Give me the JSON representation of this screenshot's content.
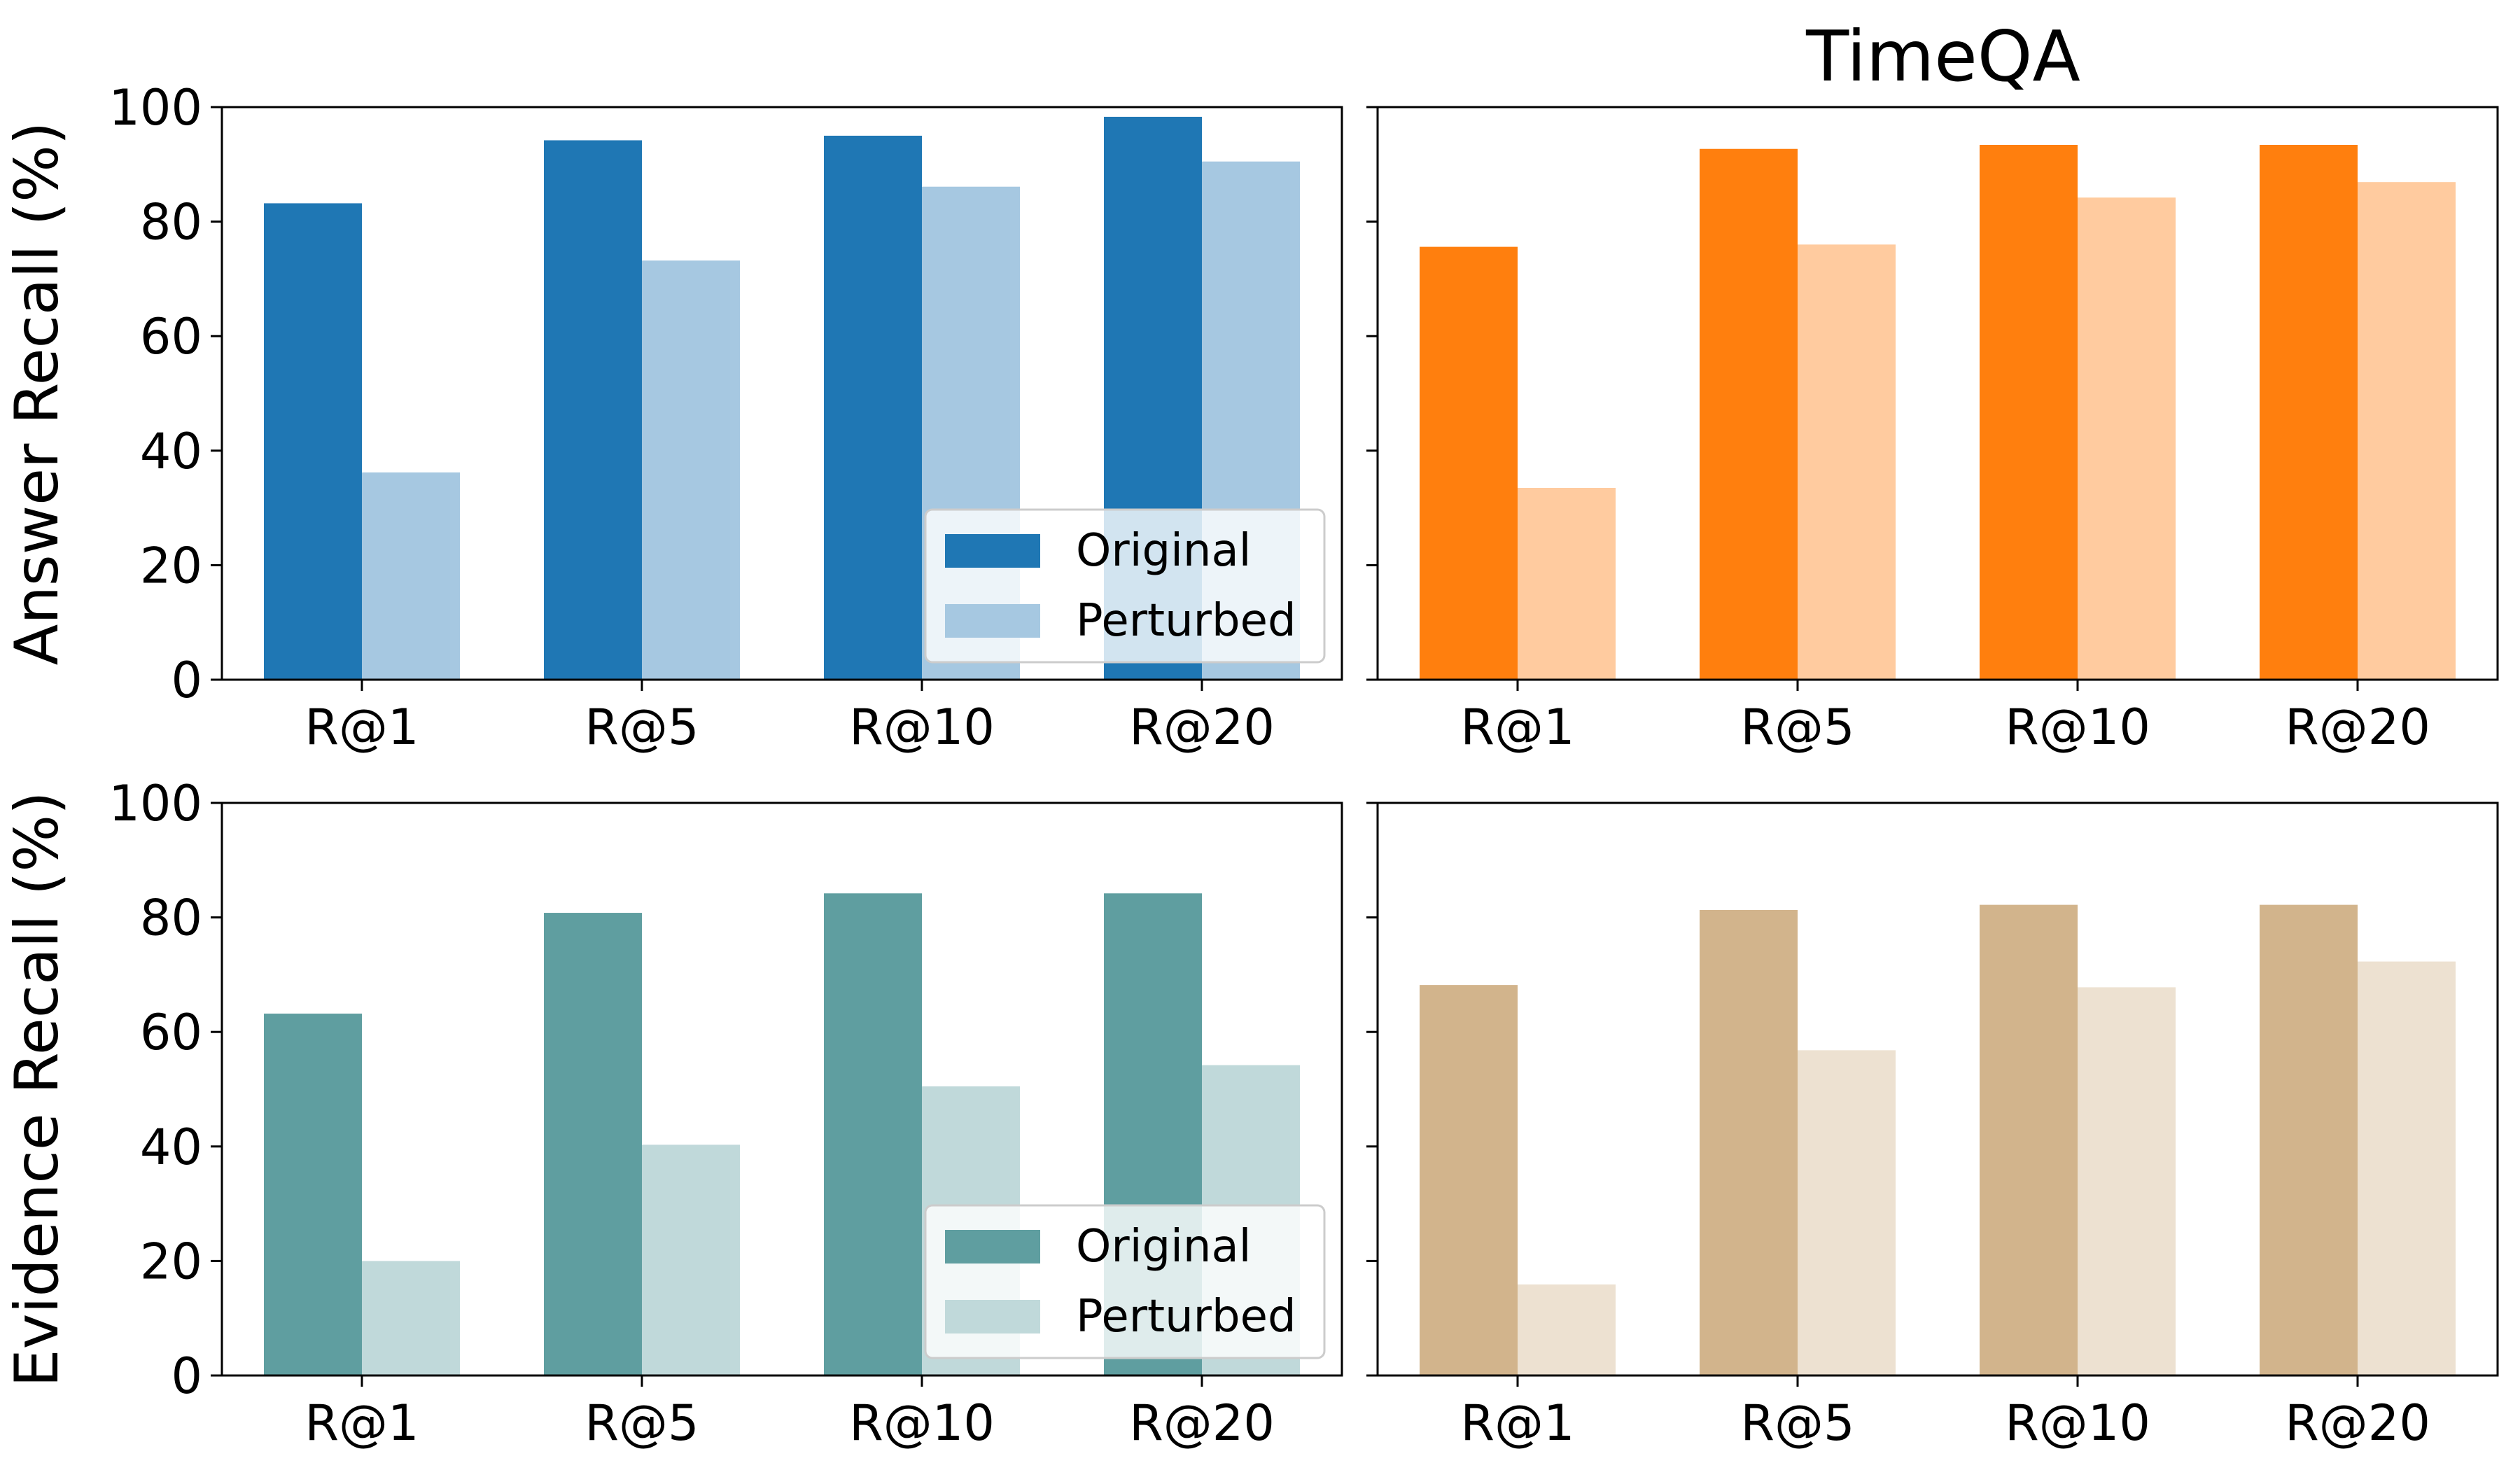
{
  "figure_title": "TimeQA",
  "chart_data": [
    {
      "type": "bar",
      "panel": "top-left",
      "categories": [
        "R@1",
        "R@5",
        "R@10",
        "R@20"
      ],
      "series": [
        {
          "name": "Original",
          "values": [
            83.2,
            94.2,
            95.0,
            98.3
          ],
          "color": "#1f77b4"
        },
        {
          "name": "Perturbed",
          "values": [
            36.2,
            73.2,
            86.1,
            90.5
          ],
          "color": "#a6c8e1"
        }
      ],
      "title": "",
      "xlabel": "",
      "ylabel": "Answer Recall (%)",
      "ylim": [
        0,
        100
      ],
      "yticks": [
        "0",
        "20",
        "40",
        "60",
        "80",
        "100"
      ],
      "legend": "lower right",
      "grid": false
    },
    {
      "type": "bar",
      "panel": "top-right",
      "categories": [
        "R@1",
        "R@5",
        "R@10",
        "R@20"
      ],
      "series": [
        {
          "values": [
            75.6,
            92.7,
            93.4,
            93.4
          ],
          "color": "#ff7f0e"
        },
        {
          "values": [
            33.5,
            76.0,
            84.2,
            86.9
          ],
          "color": "#ffcb9f"
        }
      ],
      "title": "TimeQA",
      "xlabel": "",
      "ylabel": "",
      "ylim": [
        0,
        100
      ],
      "legend": "none",
      "grid": false
    },
    {
      "type": "bar",
      "panel": "bottom-left",
      "categories": [
        "R@1",
        "R@5",
        "R@10",
        "R@20"
      ],
      "series": [
        {
          "name": "Original",
          "values": [
            63.2,
            80.8,
            84.2,
            84.2
          ],
          "color": "#5f9ea0"
        },
        {
          "name": "Perturbed",
          "values": [
            20.0,
            40.3,
            50.5,
            54.2
          ],
          "color": "#c0d9da"
        }
      ],
      "title": "",
      "xlabel": "",
      "ylabel": "Evidence Recall (%)",
      "ylim": [
        0,
        100
      ],
      "yticks": [
        "0",
        "20",
        "40",
        "60",
        "80",
        "100"
      ],
      "legend": "lower right",
      "grid": false
    },
    {
      "type": "bar",
      "panel": "bottom-right",
      "categories": [
        "R@1",
        "R@5",
        "R@10",
        "R@20"
      ],
      "series": [
        {
          "values": [
            68.2,
            81.3,
            82.2,
            82.2
          ],
          "color": "#d2b48c"
        },
        {
          "values": [
            15.9,
            56.8,
            67.8,
            72.3
          ],
          "color": "#ede1d1"
        }
      ],
      "title": "",
      "xlabel": "",
      "ylabel": "",
      "ylim": [
        0,
        100
      ],
      "legend": "none",
      "grid": false
    }
  ]
}
